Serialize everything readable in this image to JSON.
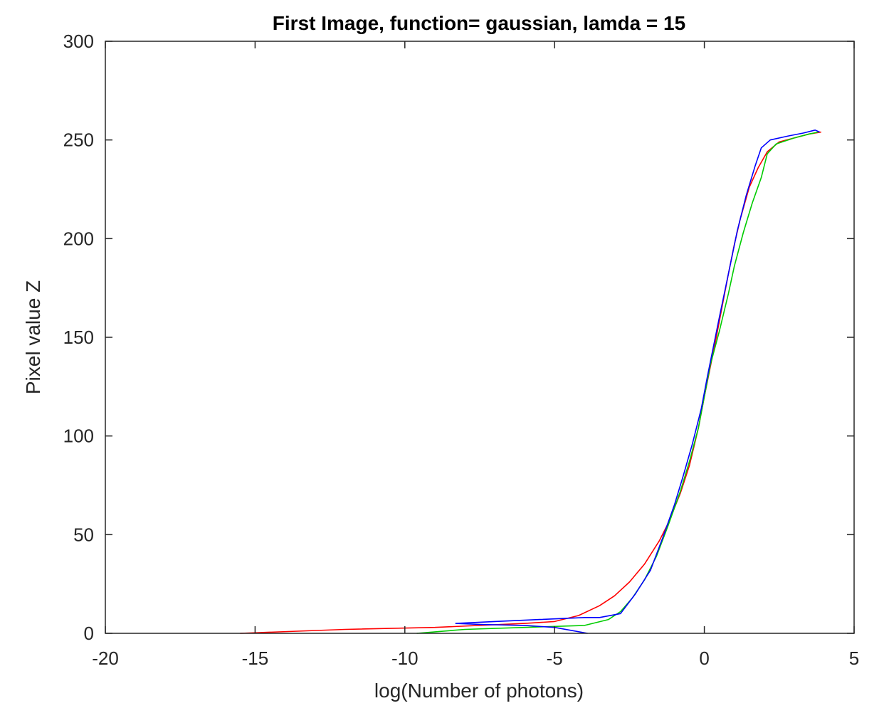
{
  "chart_data": {
    "type": "line",
    "title": "First Image, function= gaussian, lamda = 15",
    "xlabel": "log(Number of photons)",
    "ylabel": "Pixel value Z",
    "xlim": [
      -20,
      5
    ],
    "ylim": [
      0,
      300
    ],
    "xticks": [
      -20,
      -15,
      -10,
      -5,
      0,
      5
    ],
    "yticks": [
      0,
      50,
      100,
      150,
      200,
      250,
      300
    ],
    "xtick_labels": [
      "-20",
      "-15",
      "-10",
      "-5",
      "0",
      "5"
    ],
    "ytick_labels": [
      "0",
      "50",
      "100",
      "150",
      "200",
      "250",
      "300"
    ],
    "grid": false,
    "legend": "none",
    "series": [
      {
        "color": "#ff0000",
        "points": [
          [
            -15.5,
            0
          ],
          [
            -12,
            2
          ],
          [
            -9,
            3
          ],
          [
            -6,
            5
          ],
          [
            -5,
            6
          ],
          [
            -4.2,
            9
          ],
          [
            -3.5,
            14
          ],
          [
            -3,
            19
          ],
          [
            -2.5,
            26
          ],
          [
            -2,
            35
          ],
          [
            -1.5,
            47
          ],
          [
            -1.2,
            56
          ],
          [
            -0.8,
            71
          ],
          [
            -0.5,
            85
          ],
          [
            -0.2,
            104
          ],
          [
            0,
            120
          ],
          [
            0.2,
            135
          ],
          [
            0.4,
            150
          ],
          [
            0.6,
            166
          ],
          [
            0.8,
            182
          ],
          [
            1.0,
            197
          ],
          [
            1.2,
            210
          ],
          [
            1.5,
            226
          ],
          [
            1.8,
            236
          ],
          [
            2.1,
            244
          ],
          [
            2.5,
            249
          ],
          [
            3,
            251
          ],
          [
            3.5,
            253
          ],
          [
            3.9,
            254
          ]
        ]
      },
      {
        "color": "#00cc00",
        "points": [
          [
            -9.6,
            0
          ],
          [
            -8,
            2
          ],
          [
            -6,
            3
          ],
          [
            -4,
            4
          ],
          [
            -3.2,
            7
          ],
          [
            -2.8,
            11
          ],
          [
            -2.4,
            18
          ],
          [
            -2,
            27
          ],
          [
            -1.6,
            39
          ],
          [
            -1.2,
            55
          ],
          [
            -0.8,
            72
          ],
          [
            -0.5,
            87
          ],
          [
            -0.2,
            104
          ],
          [
            0,
            120
          ],
          [
            0.2,
            136
          ],
          [
            0.5,
            153
          ],
          [
            0.8,
            172
          ],
          [
            1.0,
            186
          ],
          [
            1.3,
            203
          ],
          [
            1.6,
            218
          ],
          [
            1.9,
            231
          ],
          [
            2.1,
            243
          ],
          [
            2.4,
            248
          ],
          [
            3,
            251
          ],
          [
            3.5,
            253
          ],
          [
            3.8,
            254
          ]
        ]
      },
      {
        "color": "#0000ff",
        "points": [
          [
            -3.9,
            0
          ],
          [
            -5,
            3
          ],
          [
            -6,
            4
          ],
          [
            -7.5,
            4.5
          ],
          [
            -8.3,
            5
          ],
          [
            -7,
            6
          ],
          [
            -5.5,
            7
          ],
          [
            -4,
            8
          ],
          [
            -3.5,
            8
          ],
          [
            -2.8,
            10
          ],
          [
            -2.3,
            20
          ],
          [
            -1.8,
            32
          ],
          [
            -1.4,
            48
          ],
          [
            -1.0,
            65
          ],
          [
            -0.7,
            80
          ],
          [
            -0.4,
            96
          ],
          [
            -0.1,
            114
          ],
          [
            0.1,
            130
          ],
          [
            0.3,
            145
          ],
          [
            0.5,
            160
          ],
          [
            0.8,
            182
          ],
          [
            1.1,
            204
          ],
          [
            1.4,
            222
          ],
          [
            1.7,
            237
          ],
          [
            1.9,
            246
          ],
          [
            2.2,
            250
          ],
          [
            2.8,
            252
          ],
          [
            3.3,
            253.5
          ],
          [
            3.7,
            255
          ],
          [
            3.85,
            254
          ]
        ]
      }
    ]
  }
}
